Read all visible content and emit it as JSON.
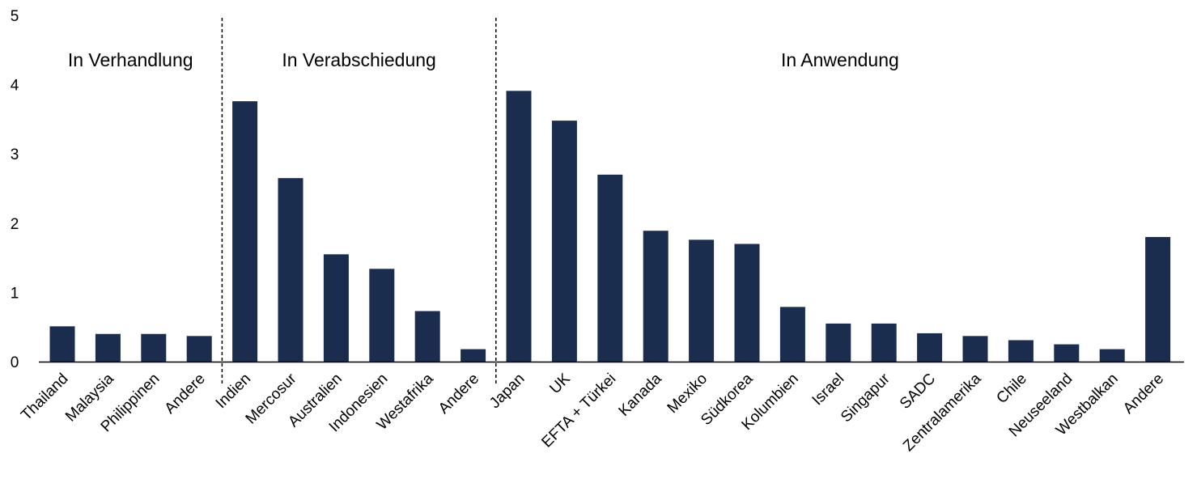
{
  "chart_data": {
    "type": "bar",
    "ylim": [
      0,
      5
    ],
    "yticks": [
      0,
      1,
      2,
      3,
      4,
      5
    ],
    "grid": false,
    "bar_color": "#1b2d4f",
    "categories": [
      "Thailand",
      "Malaysia",
      "Philippinen",
      "Andere",
      "Indien",
      "Mercosur",
      "Australien",
      "Indonesien",
      "Westafrika",
      "Andere",
      "Japan",
      "UK",
      "EFTA + Türkei",
      "Kanada",
      "Mexiko",
      "Südkorea",
      "Kolumbien",
      "Israel",
      "Singapur",
      "SADC",
      "Zentralamerika",
      "Chile",
      "Neuseeland",
      "Westbalkan",
      "Andere"
    ],
    "values": [
      0.51,
      0.4,
      0.4,
      0.37,
      3.76,
      2.65,
      1.55,
      1.34,
      0.73,
      0.18,
      3.91,
      3.48,
      2.7,
      1.89,
      1.76,
      1.7,
      0.79,
      0.55,
      0.55,
      0.41,
      0.37,
      0.31,
      0.25,
      0.18,
      1.8
    ],
    "groups": [
      {
        "label": "In Verhandlung",
        "start": 0,
        "end": 3
      },
      {
        "label": "In Verabschiedung",
        "start": 4,
        "end": 9
      },
      {
        "label": "In Anwendung",
        "start": 10,
        "end": 24
      }
    ]
  }
}
